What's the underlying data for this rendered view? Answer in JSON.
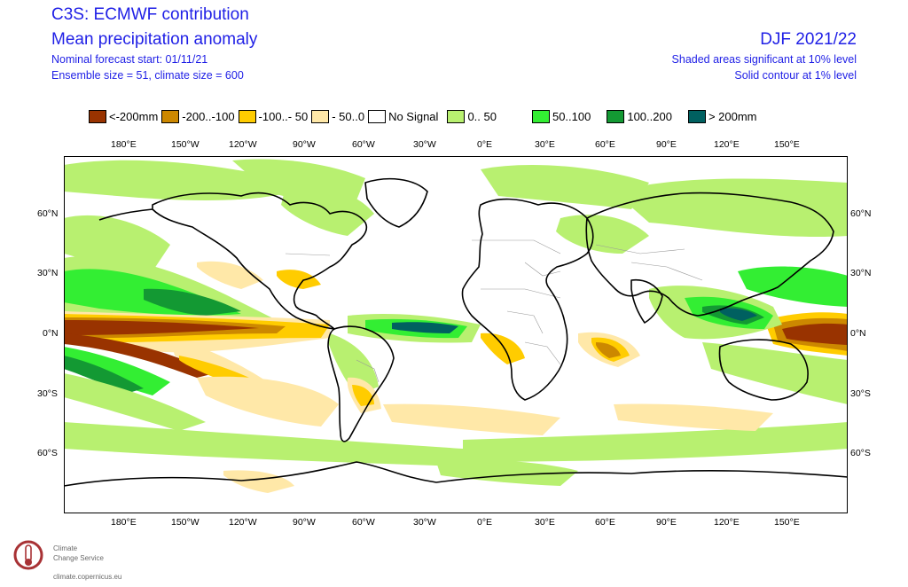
{
  "header": {
    "title": "C3S: ECMWF contribution",
    "subtitle": "Mean precipitation anomaly",
    "forecast_start": "Nominal forecast start: 01/11/21",
    "ensemble": "Ensemble size = 51, climate size = 600",
    "season": "DJF 2021/22",
    "significance_10": "Shaded areas significant at 10% level",
    "significance_1": "Solid contour at 1% level"
  },
  "legend": [
    {
      "label": "<-200mm",
      "color": "#993300"
    },
    {
      "label": "-200..-100",
      "color": "#cc8800"
    },
    {
      "label": "-100..- 50",
      "color": "#ffcc00"
    },
    {
      "label": "- 50..0",
      "color": "#ffe8a8"
    },
    {
      "label": "No Signal",
      "color": "#ffffff"
    },
    {
      "label": "0.. 50",
      "color": "#b8f070"
    },
    {
      "label": "50..100",
      "color": "#33ee33"
    },
    {
      "label": "100..200",
      "color": "#139933"
    },
    {
      "label": "> 200mm",
      "color": "#006060"
    }
  ],
  "axes": {
    "lon_labels": [
      "180°E",
      "150°W",
      "120°W",
      "90°W",
      "60°W",
      "30°W",
      "0°E",
      "30°E",
      "60°E",
      "90°E",
      "120°E",
      "150°E"
    ],
    "lat_labels": [
      "60°N",
      "30°N",
      "0°N",
      "30°S",
      "60°S"
    ]
  },
  "logo": {
    "line1": "Climate",
    "line2": "Change Service",
    "url": "climate.copernicus.eu"
  },
  "colors": {
    "header_text": "#1f1fe6",
    "coast": "#000000",
    "borders": "#999999"
  }
}
